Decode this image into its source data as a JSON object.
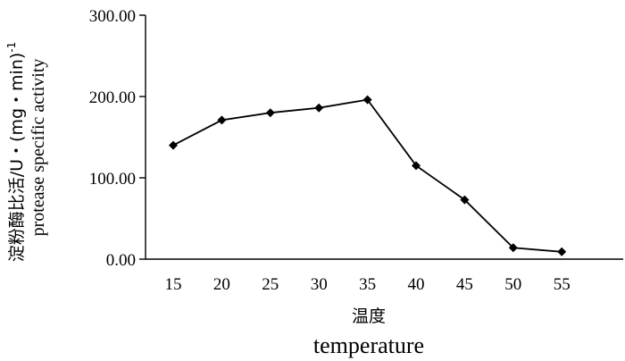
{
  "chart_data": {
    "type": "line",
    "x": [
      "15",
      "20",
      "25",
      "30",
      "35",
      "40",
      "45",
      "50",
      "55"
    ],
    "series": [
      {
        "values": [
          140,
          171,
          180,
          186,
          196,
          115,
          73,
          14,
          9
        ]
      }
    ],
    "ylim": [
      0,
      300
    ],
    "yticks": [
      "0.00",
      "100.00",
      "200.00",
      "300.00"
    ],
    "xlabel_cn": "温度",
    "xlabel_en": "temperature",
    "ylabel_cn": "淀粉酶比活/U・(mg・min)",
    "ylabel_sup": "-1",
    "ylabel_en": "protease specific activity",
    "grid": false,
    "legend": "none",
    "colors": {
      "line": "#000000",
      "marker": "#000000"
    }
  }
}
